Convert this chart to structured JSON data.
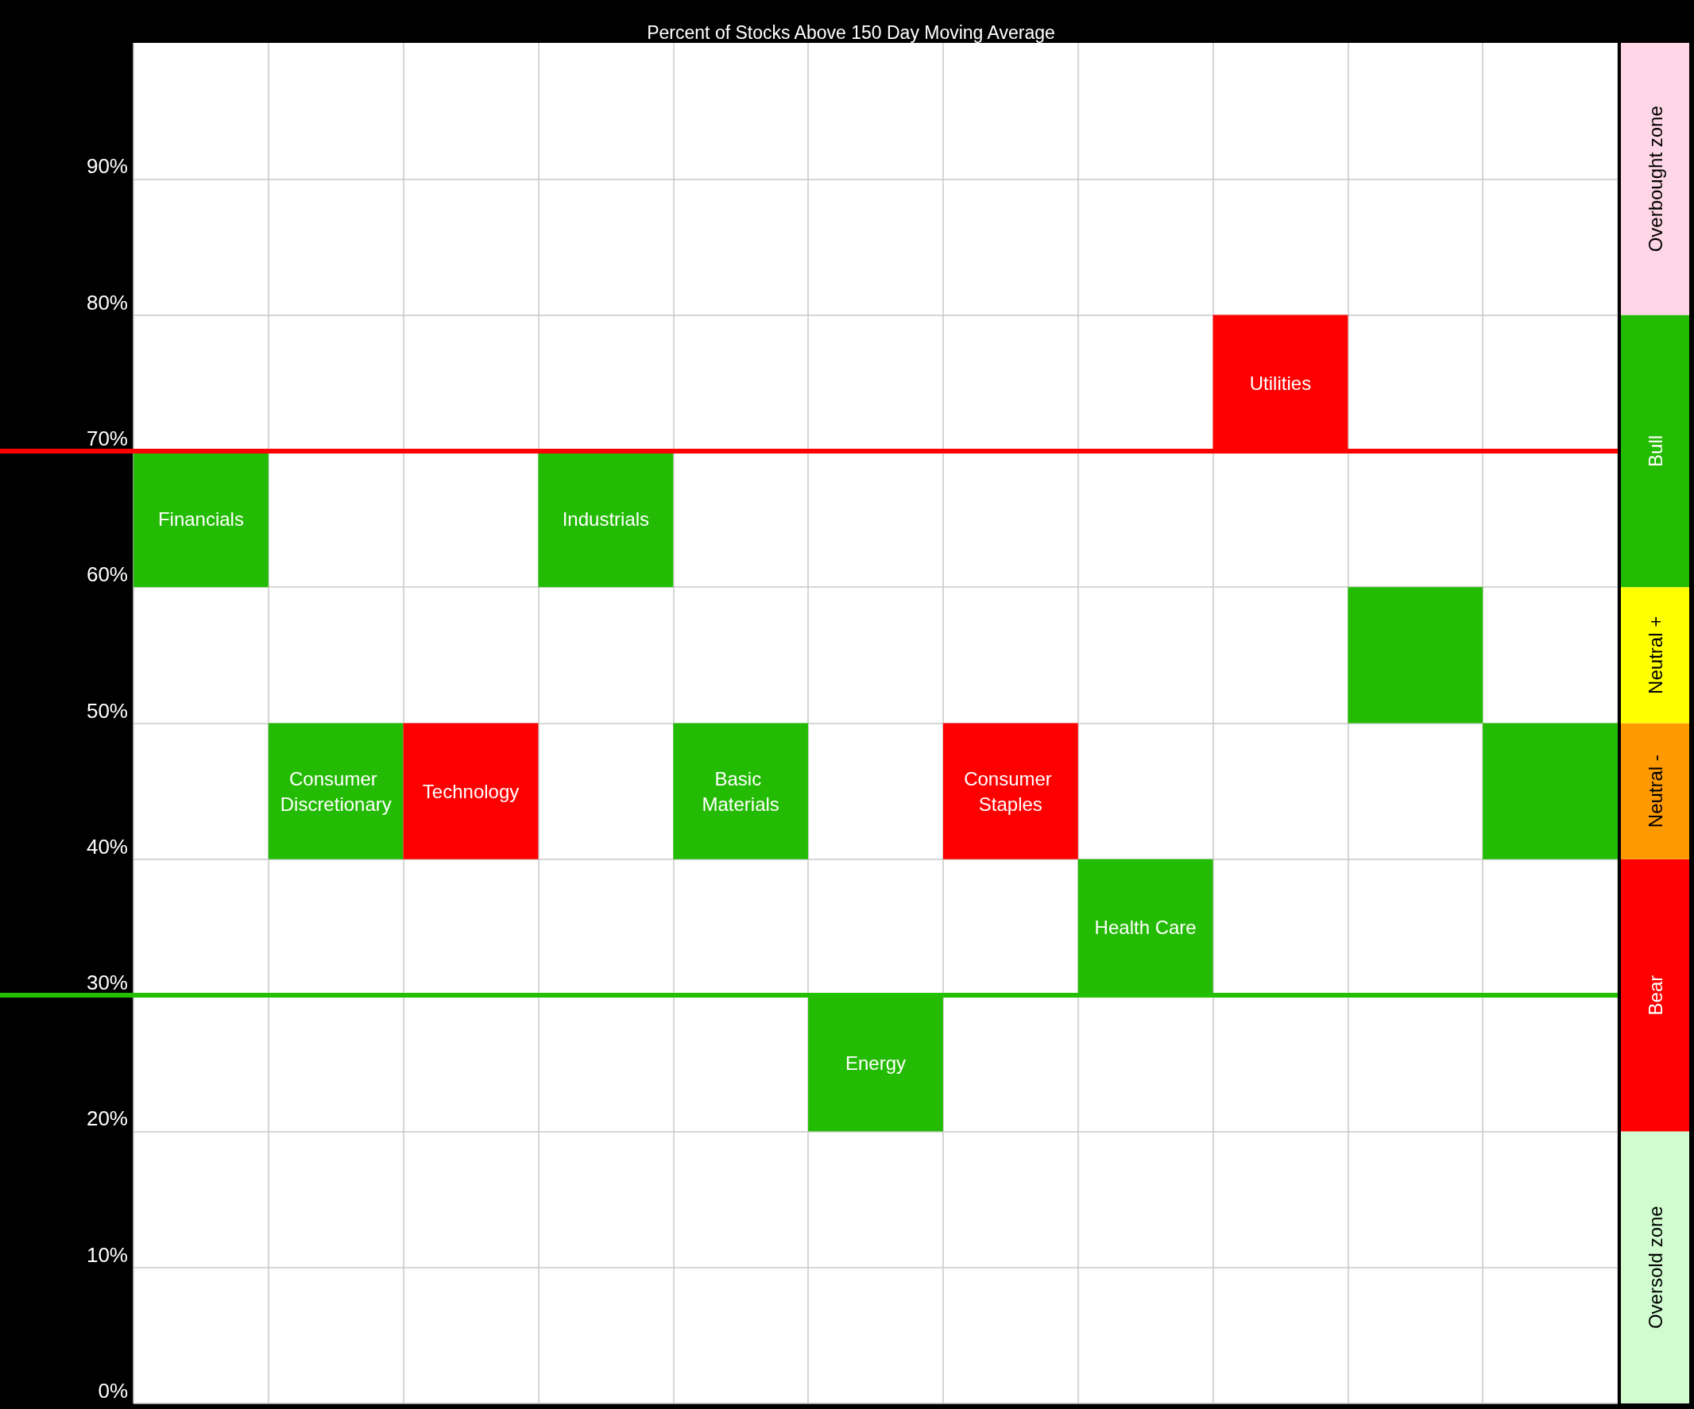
{
  "chart_data": [
    {
      "type": "bar",
      "title": "Percent of Stocks Above 150 Day Moving Average",
      "categories": [
        "Financials",
        "Consumer Discretionary",
        "Technology",
        "Industrials",
        "Basic Materials",
        "Energy",
        "Consumer Staples",
        "Health Care",
        "Utilities",
        null,
        null
      ],
      "base": [
        60,
        40,
        40,
        60,
        40,
        20,
        40,
        30,
        70,
        50,
        40
      ],
      "values": [
        10,
        10,
        10,
        10,
        10,
        10,
        10,
        10,
        10,
        10,
        10
      ],
      "colors": [
        "#24bb04",
        "#24bb04",
        "#ff0000",
        "#24bb04",
        "#24bb04",
        "#24bb04",
        "#ff0000",
        "#24bb04",
        "#ff0000",
        "#24bb04",
        "#24bb04"
      ],
      "ylim": [
        0,
        100
      ],
      "yticks": [
        {
          "value": 0,
          "label": "0%"
        },
        {
          "value": 10,
          "label": "10%"
        },
        {
          "value": 20,
          "label": "20%"
        },
        {
          "value": 30,
          "label": "30%"
        },
        {
          "value": 40,
          "label": "40%"
        },
        {
          "value": 50,
          "label": "50%"
        },
        {
          "value": 60,
          "label": "60%"
        },
        {
          "value": 70,
          "label": "70%"
        },
        {
          "value": 80,
          "label": "80%"
        },
        {
          "value": 90,
          "label": "90%"
        }
      ],
      "grid": true,
      "tick_labels": "y",
      "ref_lines": [
        {
          "axis": "y",
          "value": 70,
          "color": "#ff0000"
        },
        {
          "axis": "y",
          "value": 30,
          "color": "#22c000"
        }
      ]
    },
    {
      "type": "bar",
      "categories": [
        null
      ],
      "stacked": true,
      "series": [
        {
          "name": "Oversold zone",
          "color": "#d0fcd0",
          "values": [
            20
          ]
        },
        {
          "name": "Bear",
          "color": "#ff0000",
          "values": [
            20
          ]
        },
        {
          "name": "Neutral -",
          "color": "#ff9900",
          "values": [
            10
          ]
        },
        {
          "name": "Neutral +",
          "color": "#ffff00",
          "values": [
            10
          ]
        },
        {
          "name": "Bull",
          "color": "#22bb00",
          "values": [
            20
          ]
        },
        {
          "name": "Overbought zone",
          "color": "#ffd6e6",
          "values": [
            20
          ]
        }
      ],
      "ylim": [
        0,
        100
      ],
      "tick_labels": false
    }
  ]
}
